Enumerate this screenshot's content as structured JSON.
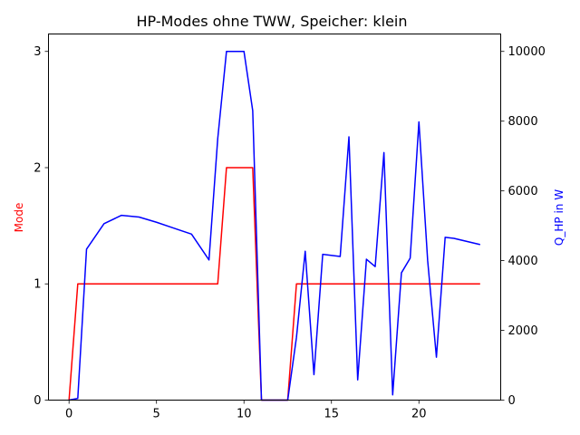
{
  "chart_data": {
    "type": "line",
    "title": "HP-Modes ohne TWW, Speicher: klein",
    "xlabel": "",
    "xlim": [
      -1.175,
      24.675
    ],
    "xticks": [
      0,
      5,
      10,
      15,
      20
    ],
    "left_axis": {
      "label": "Mode",
      "color": "#ff0000",
      "ylim": [
        0,
        3.15
      ],
      "ticks": [
        0,
        1,
        2,
        3
      ]
    },
    "right_axis": {
      "label": "Q_HP in W",
      "color": "#0000ff",
      "ylim": [
        0,
        10500
      ],
      "ticks": [
        0,
        2000,
        4000,
        6000,
        8000,
        10000
      ]
    },
    "series": [
      {
        "axis": "left",
        "color": "#ff0000",
        "points": [
          [
            0,
            0
          ],
          [
            0.5,
            1
          ],
          [
            1,
            1
          ],
          [
            2,
            1
          ],
          [
            3,
            1
          ],
          [
            4,
            1
          ],
          [
            5,
            1
          ],
          [
            6,
            1
          ],
          [
            7,
            1
          ],
          [
            8,
            1
          ],
          [
            8.5,
            1
          ],
          [
            9,
            2
          ],
          [
            10,
            2
          ],
          [
            10.5,
            2
          ],
          [
            11,
            0
          ],
          [
            12,
            0
          ],
          [
            12.5,
            0
          ],
          [
            13,
            1
          ],
          [
            14,
            1
          ],
          [
            15,
            1
          ],
          [
            16,
            1
          ],
          [
            17,
            1
          ],
          [
            18,
            1
          ],
          [
            19,
            1
          ],
          [
            20,
            1
          ],
          [
            21,
            1
          ],
          [
            22,
            1
          ],
          [
            23,
            1
          ],
          [
            23.5,
            1
          ]
        ]
      },
      {
        "axis": "right",
        "color": "#0000ff",
        "points": [
          [
            0,
            0
          ],
          [
            0.5,
            50
          ],
          [
            1,
            4330
          ],
          [
            2,
            5060
          ],
          [
            3,
            5300
          ],
          [
            4,
            5250
          ],
          [
            5,
            5100
          ],
          [
            6,
            4930
          ],
          [
            7,
            4760
          ],
          [
            8,
            4020
          ],
          [
            8.5,
            7500
          ],
          [
            9,
            10000
          ],
          [
            10,
            10000
          ],
          [
            10.5,
            8300
          ],
          [
            11,
            0
          ],
          [
            12,
            0
          ],
          [
            12.5,
            0
          ],
          [
            13,
            1800
          ],
          [
            13.5,
            4270
          ],
          [
            14,
            730
          ],
          [
            14.5,
            4180
          ],
          [
            15.5,
            4120
          ],
          [
            16,
            7550
          ],
          [
            16.5,
            580
          ],
          [
            17,
            4040
          ],
          [
            17.5,
            3830
          ],
          [
            18,
            7100
          ],
          [
            18.5,
            150
          ],
          [
            19,
            3650
          ],
          [
            19.5,
            4070
          ],
          [
            20,
            7980
          ],
          [
            20.5,
            4000
          ],
          [
            21,
            1230
          ],
          [
            21.5,
            4670
          ],
          [
            22,
            4640
          ],
          [
            23.5,
            4460
          ]
        ]
      }
    ]
  }
}
